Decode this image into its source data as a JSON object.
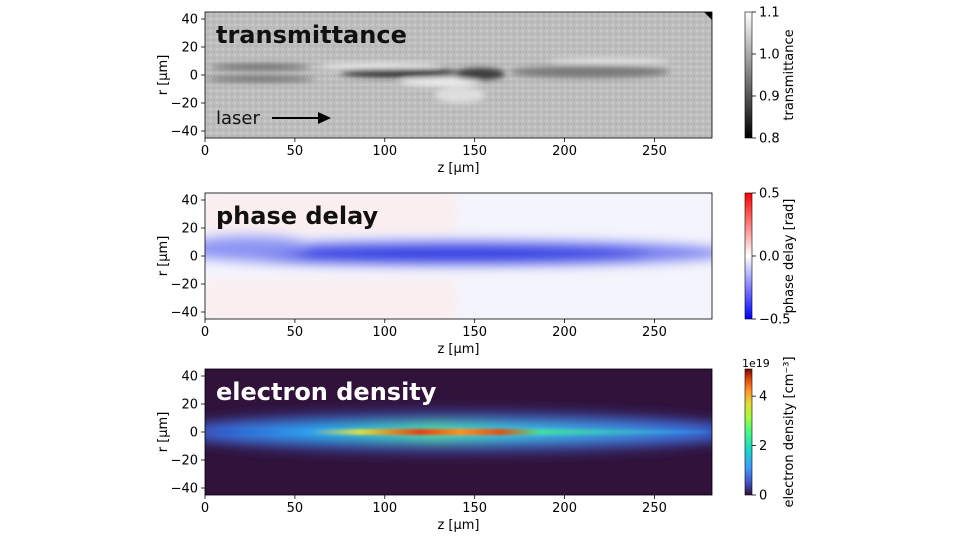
{
  "chart_data": [
    {
      "type": "heatmap",
      "panel_label": "transmittance",
      "annotation": "laser",
      "annotation_icon": "arrow-right-icon",
      "xlabel": "z [µm]",
      "ylabel": "r [µm]",
      "xlim": [
        0,
        282
      ],
      "ylim": [
        -45,
        45
      ],
      "xticks": [
        0,
        50,
        100,
        150,
        200,
        250
      ],
      "yticks": [
        -40,
        -20,
        0,
        20,
        40
      ],
      "colorbar": {
        "label": "transmittance",
        "range": [
          0.8,
          1.1
        ],
        "ticks": [
          "0.8",
          "0.9",
          "1.0",
          "1.1"
        ],
        "tick_values": [
          0.8,
          0.9,
          1.0,
          1.1
        ],
        "colormap": "gray",
        "offset_text": ""
      }
    },
    {
      "type": "heatmap",
      "panel_label": "phase delay",
      "xlabel": "z [µm]",
      "ylabel": "r [µm]",
      "xlim": [
        0,
        282
      ],
      "ylim": [
        -45,
        45
      ],
      "xticks": [
        0,
        50,
        100,
        150,
        200,
        250
      ],
      "yticks": [
        -40,
        -20,
        0,
        20,
        40
      ],
      "colorbar": {
        "label": "phase delay [rad]",
        "range": [
          -0.5,
          0.5
        ],
        "ticks": [
          "−0.5",
          "0.0",
          "0.5"
        ],
        "tick_values": [
          -0.5,
          0,
          0.5
        ],
        "colormap": "bwr",
        "offset_text": ""
      }
    },
    {
      "type": "heatmap",
      "panel_label": "electron density",
      "xlabel": "z [µm]",
      "ylabel": "r [µm]",
      "xlim": [
        0,
        282
      ],
      "ylim": [
        -45,
        45
      ],
      "xticks": [
        0,
        50,
        100,
        150,
        200,
        250
      ],
      "yticks": [
        -40,
        -20,
        0,
        20,
        40
      ],
      "colorbar": {
        "label": "electron density [cm⁻³]",
        "range": [
          0,
          5.1
        ],
        "ticks": [
          "0",
          "2",
          "4"
        ],
        "tick_values": [
          0,
          2,
          4
        ],
        "colormap": "turbo",
        "offset_text": "1e19"
      }
    }
  ]
}
